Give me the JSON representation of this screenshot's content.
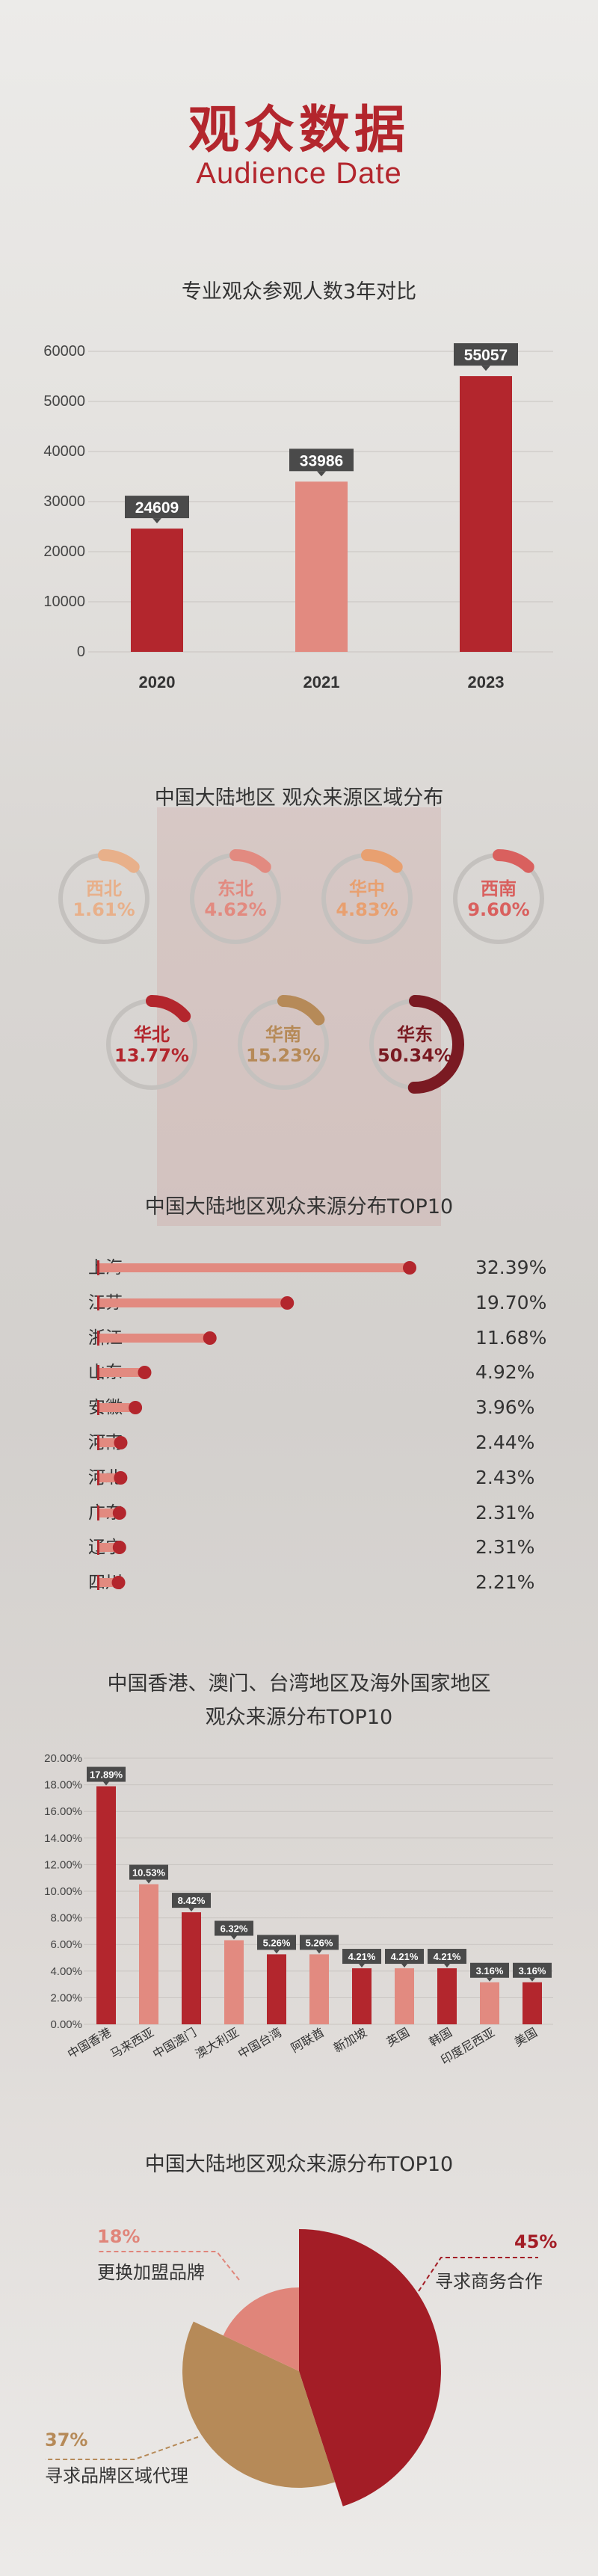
{
  "header": {
    "title": "观众数据",
    "subtitle": "Audience Date"
  },
  "colors": {
    "dark": "#b3262d",
    "mid": "#e28a80",
    "light": "#e8b08a",
    "tan": "#b68a58",
    "deep": "#7a1a22",
    "grid": "#c8c4c0"
  },
  "bar_chart": {
    "title": "专业观众参观人数3年对比"
  },
  "ring_chart": {
    "title": "中国大陆地区 观众来源区域分布"
  },
  "top10": {
    "title": "中国大陆地区观众来源分布TOP10"
  },
  "overseas": {
    "title_line1": "中国香港、澳门、台湾地区及海外国家地区",
    "title_line2": "观众来源分布TOP10"
  },
  "pie": {
    "title": "中国大陆地区观众来源分布TOP10"
  },
  "chart_data": [
    {
      "type": "bar",
      "title": "专业观众参观人数3年对比",
      "categories": [
        "2020",
        "2021",
        "2023"
      ],
      "values": [
        24609,
        33986,
        55057
      ],
      "value_labels": [
        "24609",
        "33986",
        "55057"
      ],
      "yticks": [
        "0",
        "10000",
        "20000",
        "30000",
        "40000",
        "50000",
        "60000"
      ],
      "ylim": [
        0,
        60000
      ],
      "bar_colors": [
        "#b3262d",
        "#e28a80",
        "#b3262d"
      ]
    },
    {
      "type": "pie",
      "subtype": "ring-progress",
      "title": "中国大陆地区 观众来源区域分布",
      "items": [
        {
          "label": "西北",
          "value": 1.61,
          "text": "1.61%",
          "color": "#e8b08a"
        },
        {
          "label": "东北",
          "value": 4.62,
          "text": "4.62%",
          "color": "#e28a80"
        },
        {
          "label": "华中",
          "value": 4.83,
          "text": "4.83%",
          "color": "#e8a070"
        },
        {
          "label": "西南",
          "value": 9.6,
          "text": "9.60%",
          "color": "#d9605e"
        },
        {
          "label": "华北",
          "value": 13.77,
          "text": "13.77%",
          "color": "#b3262d"
        },
        {
          "label": "华南",
          "value": 15.23,
          "text": "15.23%",
          "color": "#b68a58"
        },
        {
          "label": "华东",
          "value": 50.34,
          "text": "50.34%",
          "color": "#7a1a22"
        }
      ]
    },
    {
      "type": "bar",
      "orientation": "horizontal",
      "title": "中国大陆地区观众来源分布TOP10",
      "categories": [
        "上海",
        "江苏",
        "浙江",
        "山东",
        "安徽",
        "河南",
        "河北",
        "广东",
        "辽宁",
        "四川"
      ],
      "values": [
        32.39,
        19.7,
        11.68,
        4.92,
        3.96,
        2.44,
        2.43,
        2.31,
        2.31,
        2.21
      ],
      "value_labels": [
        "32.39%",
        "19.70%",
        "11.68%",
        "4.92%",
        "3.96%",
        "2.44%",
        "2.43%",
        "2.31%",
        "2.31%",
        "2.21%"
      ]
    },
    {
      "type": "bar",
      "title": "中国香港、澳门、台湾地区及海外国家地区 观众来源分布TOP10",
      "categories": [
        "中国香港",
        "马来西亚",
        "中国澳门",
        "澳大利亚",
        "中国台湾",
        "阿联酋",
        "新加坡",
        "英国",
        "韩国",
        "印度尼西亚",
        "美国"
      ],
      "values": [
        17.89,
        10.53,
        8.42,
        6.32,
        5.26,
        5.26,
        4.21,
        4.21,
        4.21,
        3.16,
        3.16
      ],
      "value_labels": [
        "17.89%",
        "10.53%",
        "8.42%",
        "6.32%",
        "5.26%",
        "5.26%",
        "4.21%",
        "4.21%",
        "4.21%",
        "3.16%",
        "3.16%"
      ],
      "yticks": [
        "0.00%",
        "2.00%",
        "4.00%",
        "6.00%",
        "8.00%",
        "10.00%",
        "12.00%",
        "14.00%",
        "16.00%",
        "18.00%",
        "20.00%"
      ],
      "ylim": [
        0,
        20
      ],
      "bar_colors": [
        "#b3262d",
        "#e28a80",
        "#b3262d",
        "#e28a80",
        "#b3262d",
        "#e28a80",
        "#b3262d",
        "#e28a80",
        "#b3262d",
        "#e28a80",
        "#b3262d"
      ]
    },
    {
      "type": "pie",
      "subtype": "rose",
      "title": "中国大陆地区观众来源分布TOP10",
      "slices": [
        {
          "label": "寻求商务合作",
          "value": 45,
          "text": "45%",
          "color": "#a31d26"
        },
        {
          "label": "寻求品牌区域代理",
          "value": 37,
          "text": "37%",
          "color": "#b68a58"
        },
        {
          "label": "更换加盟品牌",
          "value": 18,
          "text": "18%",
          "color": "#e0857a"
        }
      ]
    }
  ]
}
